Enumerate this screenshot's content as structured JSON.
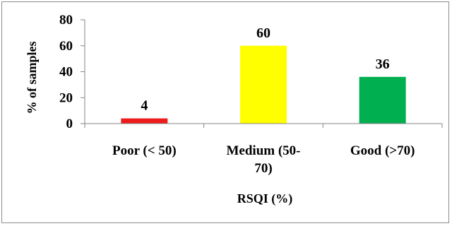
{
  "chart_data": {
    "type": "bar",
    "title": "",
    "categories": [
      [
        "Poor (< 50)"
      ],
      [
        "Medium (50-",
        "70)"
      ],
      [
        "Good (>70)"
      ]
    ],
    "values": [
      4,
      60,
      36
    ],
    "data_labels": [
      "4",
      "60",
      "36"
    ],
    "colors": [
      "#ee1c1c",
      "#ffff00",
      "#00b050"
    ],
    "xlabel": "RSQI (%)",
    "ylabel": "% of samples",
    "ylim": [
      0,
      80
    ],
    "yticks": [
      0,
      20,
      40,
      60,
      80
    ],
    "grid": false,
    "legend": "none"
  }
}
